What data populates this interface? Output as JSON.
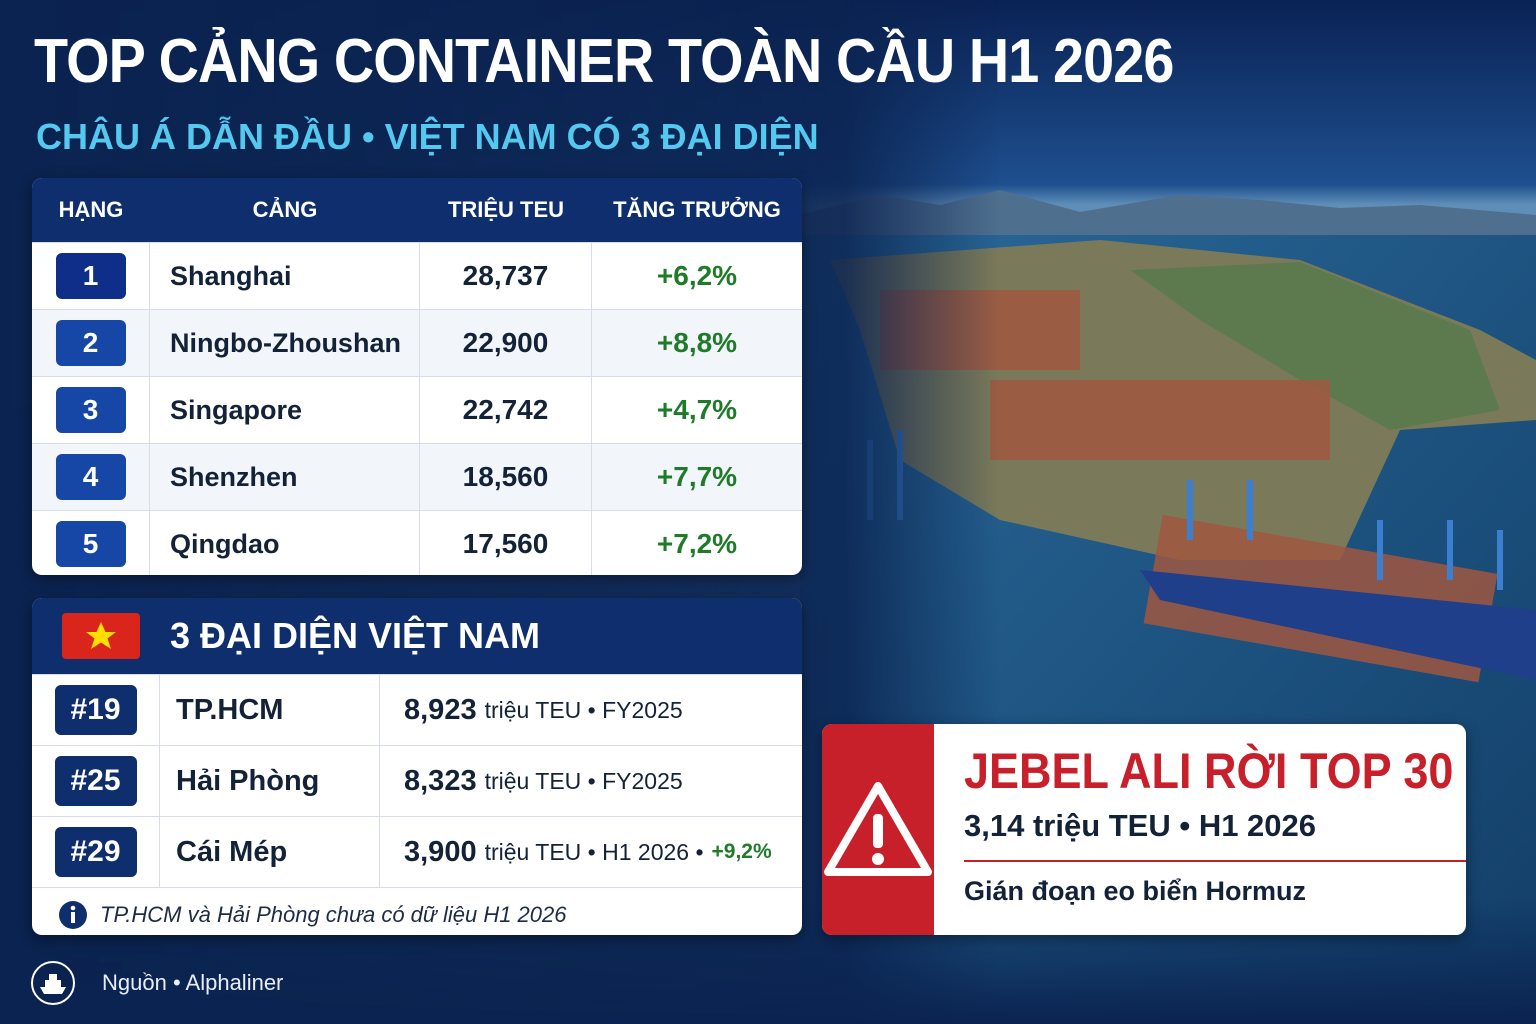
{
  "header": {
    "title": "TOP CẢNG CONTAINER TOÀN CẦU H1 2026",
    "subtitle": "CHÂU Á DẪN ĐẦU • VIỆT NAM CÓ 3 ĐẠI DIỆN"
  },
  "table": {
    "columns": [
      "HẠNG",
      "CẢNG",
      "TRIỆU TEU",
      "TĂNG TRƯỞNG"
    ],
    "rows": [
      [
        "1",
        "Shanghai",
        "28,737",
        "+6,2%"
      ],
      [
        "2",
        "Ningbo-Zhoushan",
        "22,900",
        "+8,8%"
      ],
      [
        "3",
        "Singapore",
        "22,742",
        "+4,7%"
      ],
      [
        "4",
        "Shenzhen",
        "18,560",
        "+7,7%"
      ],
      [
        "5",
        "Qingdao",
        "17,560",
        "+7,2%"
      ]
    ]
  },
  "vietnam": {
    "title": "3 ĐẠI DIỆN VIỆT NAM",
    "rows": [
      {
        "rank": "#19",
        "port": "TP.HCM",
        "value": "8,923",
        "detail": "triệu TEU • FY2025"
      },
      {
        "rank": "#25",
        "port": "Hải Phòng",
        "value": "8,323",
        "detail": "triệu TEU • FY2025"
      },
      {
        "rank": "#29",
        "port": "Cái Mép",
        "value": "3,900",
        "detail": "triệu TEU • H1 2026 •",
        "growth": "+9,2%"
      }
    ],
    "note": "TP.HCM và Hải Phòng chưa có dữ liệu H1 2026"
  },
  "alert": {
    "title": "JEBEL ALI RỜI TOP 30",
    "subtitle": "3,14 triệu TEU • H1 2026",
    "note": "Gián đoạn eo biển Hormuz"
  },
  "footer": {
    "source": "Nguồn • Alphaliner"
  }
}
